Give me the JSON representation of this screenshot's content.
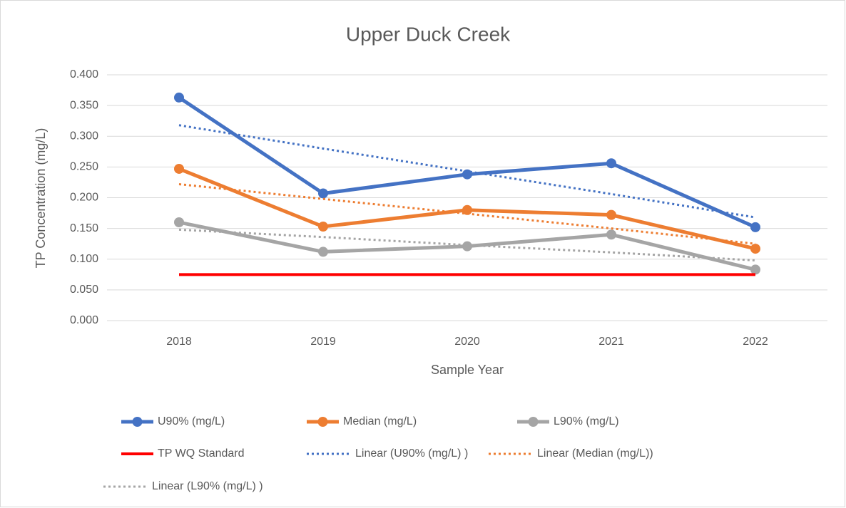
{
  "chart_data": {
    "type": "line",
    "title": "Upper Duck Creek",
    "x_label": "Sample Year",
    "y_label": "TP Concentration (mg/L)",
    "categories": [
      "2018",
      "2019",
      "2020",
      "2021",
      "2022"
    ],
    "ylim": [
      0,
      0.4
    ],
    "yticks": [
      {
        "value": 0,
        "label": "0.000"
      },
      {
        "value": 0.05,
        "label": "0.050"
      },
      {
        "value": 0.1,
        "label": "0.100"
      },
      {
        "value": 0.15,
        "label": "0.150"
      },
      {
        "value": 0.2,
        "label": "0.200"
      },
      {
        "value": 0.25,
        "label": "0.250"
      },
      {
        "value": 0.3,
        "label": "0.300"
      },
      {
        "value": 0.35,
        "label": "0.350"
      },
      {
        "value": 0.4,
        "label": "0.400"
      }
    ],
    "grid": true,
    "legend": "bottom",
    "series": [
      {
        "name": "U90% (mg/L)",
        "color": "#4472c4",
        "line_style": "solid",
        "markers": true,
        "values": [
          0.363,
          0.207,
          0.238,
          0.256,
          0.152
        ]
      },
      {
        "name": "Median (mg/L)",
        "color": "#ed7d31",
        "line_style": "solid",
        "markers": true,
        "values": [
          0.247,
          0.153,
          0.18,
          0.172,
          0.117
        ]
      },
      {
        "name": "L90% (mg/L)",
        "color": "#a5a5a5",
        "line_style": "solid",
        "markers": true,
        "values": [
          0.16,
          0.112,
          0.121,
          0.14,
          0.083
        ]
      },
      {
        "name": "TP WQ Standard",
        "color": "#ff0000",
        "line_style": "solid",
        "markers": false,
        "values": [
          0.075,
          0.075,
          0.075,
          0.075,
          0.075
        ]
      },
      {
        "name": "Linear (U90% (mg/L) )",
        "color": "#4472c4",
        "line_style": "dotted",
        "markers": false,
        "values": [
          0.318,
          0.28,
          0.243,
          0.206,
          0.168
        ]
      },
      {
        "name": "Linear (Median (mg/L))",
        "color": "#ed7d31",
        "line_style": "dotted",
        "markers": false,
        "values": [
          0.222,
          0.198,
          0.174,
          0.15,
          0.125
        ]
      },
      {
        "name": "Linear (L90% (mg/L) )",
        "color": "#a5a5a5",
        "line_style": "dotted",
        "markers": false,
        "values": [
          0.148,
          0.136,
          0.123,
          0.111,
          0.098
        ]
      }
    ]
  }
}
